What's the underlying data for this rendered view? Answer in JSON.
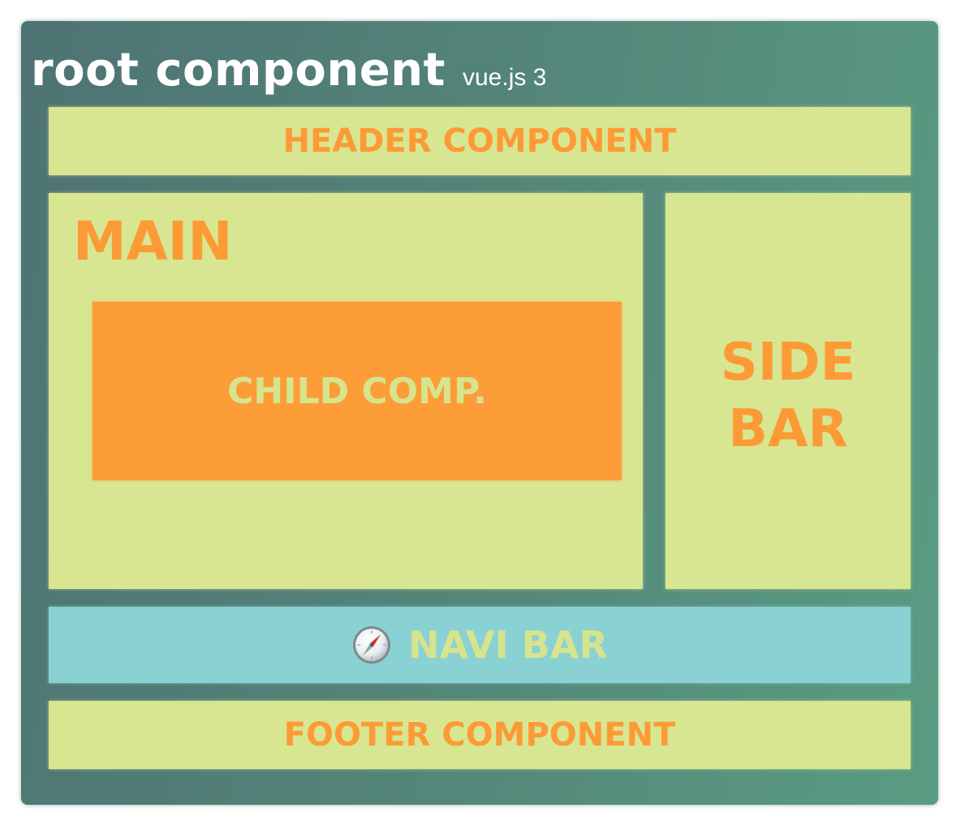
{
  "root": {
    "title": "root component",
    "subtitle": "vue.js 3"
  },
  "header": {
    "label": "HEADER COMPONENT"
  },
  "main": {
    "label": "MAIN",
    "child": {
      "label": "CHILD COMP."
    }
  },
  "sidebar": {
    "line1": "SIDE",
    "line2": "BAR"
  },
  "navi": {
    "icon": "compass-icon",
    "label": "NAVI BAR"
  },
  "footer": {
    "label": "FOOTER COMPONENT"
  },
  "colors": {
    "root_background": "#538378",
    "component_fill": "#d8e692",
    "label_orange": "#fc9b36",
    "child_fill": "#fc9d37",
    "navi_fill": "#8ad1d3",
    "inverse_label": "#d6e48e"
  }
}
